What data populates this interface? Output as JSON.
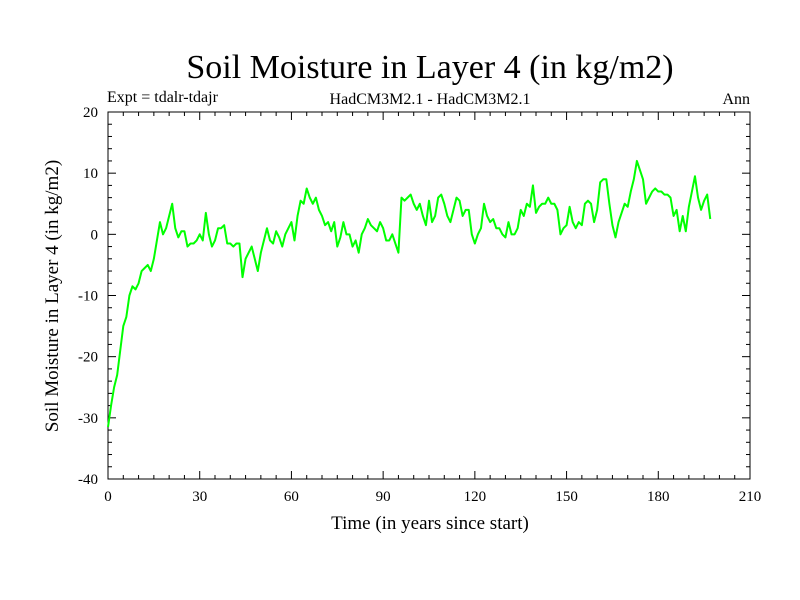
{
  "chart_data": {
    "type": "line",
    "title": "Soil Moisture in Layer 4 (in kg/m2)",
    "subtitle_left": "Expt = tdalr-tdajr",
    "subtitle_center": "HadCM3M2.1 - HadCM3M2.1",
    "subtitle_right": "Ann",
    "xlabel": "Time (in years since start)",
    "ylabel": "Soil Moisture in Layer 4 (in kg/m2)",
    "xlim": [
      0,
      210
    ],
    "ylim": [
      -40,
      20
    ],
    "xticks": [
      0,
      30,
      60,
      90,
      120,
      150,
      180,
      210
    ],
    "yticks": [
      -40,
      -30,
      -20,
      -10,
      0,
      10,
      20
    ],
    "xtick_labels": [
      "0",
      "30",
      "60",
      "90",
      "120",
      "150",
      "180",
      "210"
    ],
    "ytick_labels": [
      "-40",
      "-30",
      "-20",
      "-10",
      "0",
      "10",
      "20"
    ],
    "grid": false,
    "line_color": "#00ff00",
    "series": [
      {
        "x_start": 0,
        "x_step": 1,
        "values": [
          -31.5,
          -28,
          -25,
          -23,
          -19,
          -15,
          -13.5,
          -10,
          -8.5,
          -9,
          -8,
          -6,
          -5.5,
          -5,
          -6,
          -4,
          -1,
          2,
          0,
          1,
          3,
          5,
          1,
          -0.5,
          0.5,
          0.5,
          -2,
          -1.5,
          -1.5,
          -1,
          0,
          -1,
          3.5,
          0,
          -2,
          -1,
          1,
          1,
          1.5,
          -1.5,
          -1.5,
          -2,
          -1.5,
          -1.5,
          -7,
          -4,
          -3,
          -2,
          -4,
          -6,
          -3,
          -1,
          1,
          -1,
          -1.5,
          0.5,
          -0.5,
          -2,
          0,
          1,
          2,
          -1,
          3,
          5.5,
          5,
          7.5,
          6,
          5,
          6,
          4,
          3,
          1.5,
          2,
          0.5,
          2,
          -2,
          -0.5,
          2,
          0,
          0,
          -2,
          -1,
          -3,
          0,
          1,
          2.5,
          1.5,
          1,
          0.5,
          2,
          1,
          -1,
          -1,
          0,
          -1.5,
          -3,
          6,
          5.5,
          6,
          6.5,
          5,
          4,
          5,
          3,
          1.5,
          5.5,
          2,
          3,
          6,
          6.5,
          5,
          3,
          2,
          4,
          6,
          5.5,
          3,
          4,
          4,
          0,
          -1.5,
          0,
          1,
          5,
          3,
          2,
          2.5,
          1,
          1,
          0,
          -0.5,
          2,
          0,
          0,
          1,
          4,
          3,
          5,
          4.5,
          8,
          3.5,
          4.5,
          5,
          5,
          6,
          5,
          5,
          4,
          0,
          1,
          1.5,
          4.5,
          2,
          1,
          2,
          1.5,
          5,
          5.5,
          5,
          2,
          4,
          8.5,
          9,
          9,
          5,
          1.5,
          -0.5,
          2,
          3.5,
          5,
          4.5,
          7,
          9,
          12,
          10.5,
          9,
          5,
          6,
          7,
          7.5,
          7,
          7,
          6.5,
          6.5,
          6,
          3,
          4,
          0.5,
          3,
          0.5,
          4.5,
          7,
          9.5,
          6,
          4,
          5.5,
          6.5,
          2.5
        ]
      }
    ]
  }
}
